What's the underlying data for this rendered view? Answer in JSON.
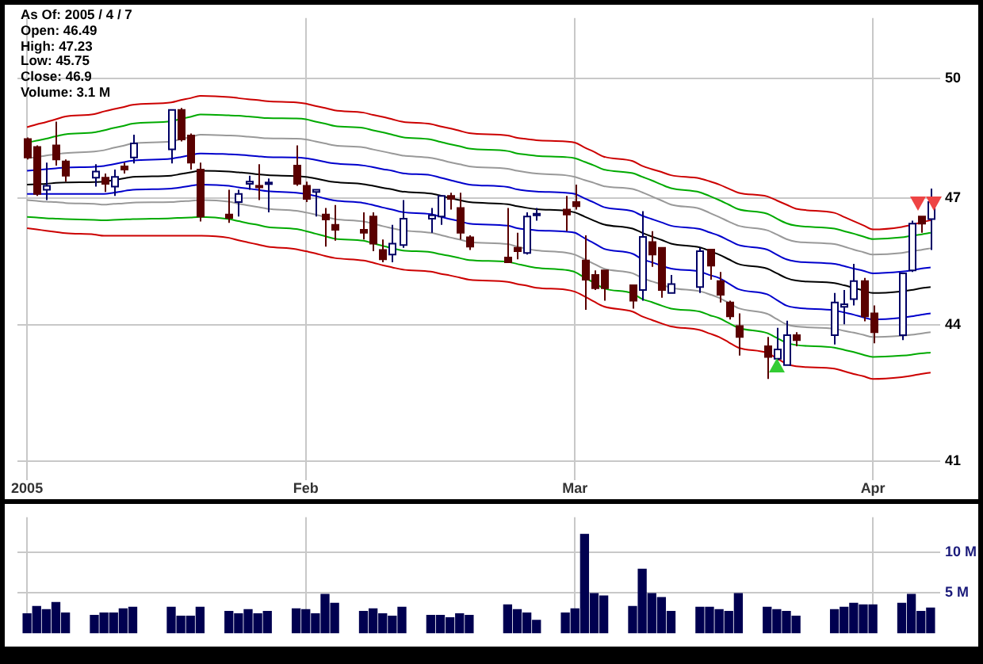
{
  "chart_data": [
    {
      "type": "candlestick",
      "log": true,
      "grid": true,
      "annotations": [
        "As Of: 2005 / 4 / 7",
        "Open: 46.49",
        "High: 47.23",
        "Low: 45.75",
        "Close: 46.9",
        "Volume: 3.1 M"
      ],
      "x": [
        "2005-01-03",
        "2005-01-04",
        "2005-01-05",
        "2005-01-06",
        "2005-01-07",
        "2005-01-10",
        "2005-01-11",
        "2005-01-12",
        "2005-01-13",
        "2005-01-14",
        "2005-01-18",
        "2005-01-19",
        "2005-01-20",
        "2005-01-21",
        "2005-01-24",
        "2005-01-25",
        "2005-01-26",
        "2005-01-27",
        "2005-01-28",
        "2005-01-31",
        "2005-02-01",
        "2005-02-02",
        "2005-02-03",
        "2005-02-04",
        "2005-02-07",
        "2005-02-08",
        "2005-02-09",
        "2005-02-10",
        "2005-02-11",
        "2005-02-14",
        "2005-02-15",
        "2005-02-16",
        "2005-02-17",
        "2005-02-18",
        "2005-02-22",
        "2005-02-23",
        "2005-02-24",
        "2005-02-25",
        "2005-02-28",
        "2005-03-01",
        "2005-03-02",
        "2005-03-03",
        "2005-03-04",
        "2005-03-07",
        "2005-03-08",
        "2005-03-09",
        "2005-03-10",
        "2005-03-11",
        "2005-03-14",
        "2005-03-15",
        "2005-03-16",
        "2005-03-17",
        "2005-03-18",
        "2005-03-21",
        "2005-03-22",
        "2005-03-23",
        "2005-03-24",
        "2005-03-28",
        "2005-03-29",
        "2005-03-30",
        "2005-03-31",
        "2005-04-01",
        "2005-04-04",
        "2005-04-05",
        "2005-04-06",
        "2005-04-07"
      ],
      "xlim": [
        "2005-01-02",
        "2005-04-08"
      ],
      "xticks": [
        {
          "value": "2005-01-03",
          "label": "2005"
        },
        {
          "value": "2005-02-01",
          "label": "Feb"
        },
        {
          "value": "2005-03-01",
          "label": "Mar"
        },
        {
          "value": "2005-04-01",
          "label": "Apr"
        }
      ],
      "ohlc": [
        [
          48.46,
          48.5,
          47.95,
          48.0
        ],
        [
          48.26,
          48.3,
          47.05,
          47.1
        ],
        [
          47.2,
          47.87,
          46.95,
          47.3
        ],
        [
          48.3,
          48.9,
          47.8,
          47.95
        ],
        [
          47.9,
          47.95,
          47.4,
          47.55
        ],
        [
          47.5,
          47.83,
          47.28,
          47.65
        ],
        [
          47.5,
          47.6,
          47.15,
          47.35
        ],
        [
          47.28,
          47.7,
          47.05,
          47.52
        ],
        [
          47.78,
          47.87,
          47.6,
          47.7
        ],
        [
          48.0,
          48.57,
          47.85,
          48.35
        ],
        [
          48.2,
          49.2,
          47.85,
          49.2
        ],
        [
          49.2,
          49.25,
          48.4,
          48.45
        ],
        [
          48.55,
          48.6,
          47.7,
          47.87
        ],
        [
          47.7,
          47.87,
          46.43,
          46.55
        ],
        [
          46.6,
          47.2,
          46.4,
          46.52
        ],
        [
          46.9,
          47.2,
          46.55,
          47.1
        ],
        [
          47.35,
          47.55,
          47.2,
          47.4
        ],
        [
          47.3,
          47.83,
          46.95,
          47.28
        ],
        [
          47.35,
          47.48,
          46.65,
          47.38
        ],
        [
          47.8,
          48.3,
          47.3,
          47.35
        ],
        [
          47.3,
          47.4,
          46.9,
          46.98
        ],
        [
          47.15,
          47.2,
          46.55,
          47.2
        ],
        [
          46.6,
          46.76,
          45.83,
          46.48
        ],
        [
          46.35,
          46.83,
          45.97,
          46.23
        ],
        [
          46.23,
          46.65,
          46.0,
          46.16
        ],
        [
          46.55,
          46.65,
          45.72,
          45.9
        ],
        [
          45.75,
          46.0,
          45.46,
          45.53
        ],
        [
          45.64,
          46.35,
          45.46,
          45.9
        ],
        [
          45.87,
          46.95,
          45.8,
          46.5
        ],
        [
          46.5,
          46.76,
          46.16,
          46.58
        ],
        [
          46.55,
          47.05,
          46.35,
          47.05
        ],
        [
          47.05,
          47.13,
          46.72,
          46.98
        ],
        [
          46.76,
          47.13,
          46.0,
          46.16
        ],
        [
          46.05,
          46.1,
          45.75,
          45.83
        ],
        [
          45.57,
          46.76,
          45.46,
          45.46
        ],
        [
          45.8,
          46.16,
          45.53,
          45.72
        ],
        [
          45.68,
          46.65,
          45.64,
          46.55
        ],
        [
          46.58,
          46.76,
          46.45,
          46.62
        ],
        [
          46.72,
          47.05,
          46.2,
          46.6
        ],
        [
          46.9,
          47.33,
          46.72,
          46.8
        ],
        [
          45.5,
          46.1,
          44.35,
          45.05
        ],
        [
          45.16,
          45.27,
          44.81,
          44.85
        ],
        [
          45.27,
          45.27,
          44.56,
          44.85
        ],
        [
          44.92,
          44.92,
          44.38,
          44.56
        ],
        [
          44.81,
          46.68,
          44.56,
          46.06
        ],
        [
          45.94,
          46.2,
          45.35,
          45.64
        ],
        [
          45.8,
          45.8,
          44.63,
          44.81
        ],
        [
          44.74,
          45.16,
          44.74,
          44.95
        ],
        [
          44.88,
          45.8,
          44.74,
          45.72
        ],
        [
          45.76,
          45.76,
          45.05,
          45.38
        ],
        [
          45.02,
          45.23,
          44.52,
          44.7
        ],
        [
          44.52,
          44.56,
          44.13,
          44.2
        ],
        [
          43.98,
          44.27,
          43.31,
          43.73
        ],
        [
          43.52,
          43.73,
          42.79,
          43.28
        ],
        [
          43.24,
          43.94,
          43.2,
          43.45
        ],
        [
          43.1,
          44.1,
          43.1,
          43.77
        ],
        [
          43.77,
          43.84,
          43.52,
          43.66
        ],
        [
          43.77,
          44.74,
          43.56,
          44.52
        ],
        [
          44.42,
          44.81,
          44.02,
          44.48
        ],
        [
          44.6,
          45.42,
          44.45,
          45.02
        ],
        [
          45.02,
          45.09,
          44.09,
          44.2
        ],
        [
          44.27,
          44.45,
          43.59,
          43.84
        ],
        [
          43.77,
          45.2,
          43.66,
          45.2
        ],
        [
          45.27,
          46.45,
          45.23,
          46.38
        ],
        [
          46.55,
          46.55,
          46.16,
          46.38
        ],
        [
          46.49,
          47.23,
          45.75,
          46.9
        ]
      ],
      "series": [
        {
          "type": "line",
          "color": "#cc0000",
          "values": [
            48.76,
            48.83,
            48.89,
            48.96,
            49.03,
            49.09,
            49.16,
            49.22,
            49.27,
            49.33,
            49.39,
            49.45,
            49.5,
            49.56,
            49.53,
            49.5,
            49.47,
            49.45,
            49.42,
            49.39,
            49.36,
            49.3,
            49.25,
            49.19,
            49.13,
            49.07,
            49.02,
            48.96,
            48.9,
            48.84,
            48.78,
            48.73,
            48.67,
            48.61,
            48.55,
            48.49,
            48.46,
            48.43,
            48.4,
            48.37,
            48.25,
            48.14,
            48.02,
            47.91,
            47.79,
            47.71,
            47.64,
            47.56,
            47.48,
            47.41,
            47.33,
            47.23,
            47.13,
            47.04,
            46.94,
            46.84,
            46.74,
            46.64,
            46.54,
            46.44,
            46.34,
            46.24,
            46.3,
            46.35,
            46.41,
            46.46
          ]
        },
        {
          "type": "line",
          "color": "#00aa00",
          "values": [
            48.37,
            48.42,
            48.47,
            48.53,
            48.58,
            48.63,
            48.68,
            48.74,
            48.79,
            48.85,
            48.91,
            48.97,
            49.02,
            49.08,
            49.06,
            49.05,
            49.03,
            49.01,
            48.99,
            48.98,
            48.96,
            48.9,
            48.85,
            48.79,
            48.74,
            48.68,
            48.63,
            48.57,
            48.51,
            48.45,
            48.39,
            48.33,
            48.28,
            48.22,
            48.16,
            48.1,
            48.07,
            48.04,
            48.01,
            47.98,
            47.89,
            47.8,
            47.7,
            47.61,
            47.52,
            47.43,
            47.33,
            47.24,
            47.14,
            47.05,
            46.95,
            46.84,
            46.73,
            46.62,
            46.5,
            46.39,
            46.33,
            46.26,
            46.2,
            46.14,
            46.07,
            46.01,
            46.05,
            46.09,
            46.12,
            46.16
          ]
        },
        {
          "type": "line",
          "color": "#999999",
          "values": [
            47.98,
            48.01,
            48.05,
            48.08,
            48.11,
            48.15,
            48.18,
            48.24,
            48.29,
            48.35,
            48.4,
            48.46,
            48.51,
            48.57,
            48.55,
            48.54,
            48.52,
            48.5,
            48.48,
            48.47,
            48.45,
            48.4,
            48.35,
            48.3,
            48.25,
            48.2,
            48.15,
            48.1,
            48.05,
            47.99,
            47.94,
            47.88,
            47.83,
            47.78,
            47.72,
            47.67,
            47.63,
            47.6,
            47.56,
            47.52,
            47.44,
            47.37,
            47.29,
            47.22,
            47.14,
            47.04,
            46.94,
            46.84,
            46.74,
            46.64,
            46.54,
            46.43,
            46.33,
            46.22,
            46.12,
            46.01,
            45.95,
            45.89,
            45.83,
            45.76,
            45.7,
            45.64,
            45.68,
            45.72,
            45.75,
            45.79
          ]
        },
        {
          "type": "line",
          "color": "#0000cc",
          "values": [
            47.67,
            47.69,
            47.71,
            47.73,
            47.75,
            47.77,
            47.79,
            47.83,
            47.88,
            47.92,
            47.97,
            48.01,
            48.06,
            48.1,
            48.08,
            48.07,
            48.05,
            48.03,
            48.01,
            48.0,
            47.98,
            47.94,
            47.89,
            47.85,
            47.8,
            47.76,
            47.71,
            47.67,
            47.61,
            47.56,
            47.5,
            47.44,
            47.38,
            47.33,
            47.27,
            47.21,
            47.18,
            47.16,
            47.13,
            47.1,
            46.99,
            46.89,
            46.78,
            46.68,
            46.57,
            46.49,
            46.41,
            46.33,
            46.25,
            46.17,
            46.09,
            45.98,
            45.87,
            45.76,
            45.64,
            45.53,
            45.48,
            45.42,
            45.37,
            45.31,
            45.26,
            45.2,
            45.24,
            45.27,
            45.31,
            45.34
          ]
        },
        {
          "type": "line",
          "color": "#000000",
          "values": [
            47.33,
            47.34,
            47.35,
            47.37,
            47.38,
            47.39,
            47.4,
            47.44,
            47.48,
            47.52,
            47.55,
            47.59,
            47.63,
            47.67,
            47.65,
            47.63,
            47.61,
            47.58,
            47.56,
            47.54,
            47.52,
            47.48,
            47.43,
            47.39,
            47.34,
            47.3,
            47.25,
            47.21,
            47.16,
            47.11,
            47.06,
            47.0,
            46.95,
            46.9,
            46.85,
            46.8,
            46.76,
            46.73,
            46.69,
            46.65,
            46.55,
            46.45,
            46.36,
            46.26,
            46.16,
            46.07,
            45.99,
            45.9,
            45.81,
            45.73,
            45.64,
            45.53,
            45.42,
            45.31,
            45.2,
            45.09,
            45.03,
            44.97,
            44.92,
            44.86,
            44.8,
            44.74,
            44.78,
            44.81,
            44.85,
            44.88
          ]
        },
        {
          "type": "line",
          "color": "#0000cc",
          "values": [
            47.1,
            47.1,
            47.1,
            47.1,
            47.1,
            47.1,
            47.1,
            47.13,
            47.17,
            47.2,
            47.23,
            47.26,
            47.3,
            47.33,
            47.3,
            47.26,
            47.23,
            47.2,
            47.17,
            47.13,
            47.1,
            47.05,
            46.99,
            46.94,
            46.88,
            46.83,
            46.77,
            46.72,
            46.66,
            46.61,
            46.55,
            46.49,
            46.44,
            46.38,
            46.33,
            46.27,
            46.24,
            46.22,
            46.19,
            46.16,
            46.03,
            45.91,
            45.78,
            45.66,
            45.53,
            45.46,
            45.38,
            45.31,
            45.24,
            45.16,
            45.09,
            44.96,
            44.83,
            44.71,
            44.58,
            44.45,
            44.4,
            44.34,
            44.29,
            44.24,
            44.18,
            44.13,
            44.17,
            44.2,
            44.24,
            44.27
          ]
        },
        {
          "type": "line",
          "color": "#999999",
          "values": [
            46.95,
            46.93,
            46.91,
            46.9,
            46.88,
            46.86,
            46.84,
            46.86,
            46.87,
            46.89,
            46.9,
            46.92,
            46.93,
            46.95,
            46.91,
            46.86,
            46.82,
            46.78,
            46.74,
            46.69,
            46.65,
            46.6,
            46.54,
            46.49,
            46.43,
            46.38,
            46.32,
            46.27,
            46.22,
            46.16,
            46.11,
            46.05,
            46.0,
            45.94,
            45.89,
            45.83,
            45.78,
            45.74,
            45.69,
            45.64,
            45.53,
            45.42,
            45.31,
            45.2,
            45.09,
            45.01,
            44.94,
            44.86,
            44.78,
            44.71,
            44.63,
            44.51,
            44.39,
            44.26,
            44.14,
            44.02,
            43.97,
            43.92,
            43.87,
            43.83,
            43.78,
            43.73,
            43.76,
            43.78,
            43.81,
            43.84
          ]
        },
        {
          "type": "line",
          "color": "#00aa00",
          "values": [
            46.54,
            46.53,
            46.51,
            46.5,
            46.49,
            46.47,
            46.46,
            46.47,
            46.48,
            46.49,
            46.51,
            46.52,
            46.53,
            46.54,
            46.49,
            46.44,
            46.39,
            46.35,
            46.3,
            46.25,
            46.2,
            46.14,
            46.08,
            46.02,
            45.97,
            45.91,
            45.85,
            45.79,
            45.74,
            45.7,
            45.65,
            45.61,
            45.56,
            45.51,
            45.47,
            45.42,
            45.37,
            45.33,
            45.28,
            45.23,
            45.1,
            44.98,
            44.85,
            44.73,
            44.6,
            44.53,
            44.45,
            44.38,
            44.31,
            44.23,
            44.16,
            44.05,
            43.94,
            43.82,
            43.71,
            43.6,
            43.55,
            43.49,
            43.44,
            43.39,
            43.33,
            43.28,
            43.31,
            43.33,
            43.36,
            43.38
          ]
        },
        {
          "type": "line",
          "color": "#cc0000",
          "values": [
            46.27,
            46.24,
            46.21,
            46.18,
            46.15,
            46.12,
            46.09,
            46.09,
            46.09,
            46.09,
            46.09,
            46.09,
            46.09,
            46.09,
            46.04,
            45.98,
            45.93,
            45.88,
            45.83,
            45.77,
            45.72,
            45.67,
            45.61,
            45.56,
            45.5,
            45.45,
            45.39,
            45.34,
            45.29,
            45.24,
            45.19,
            45.15,
            45.1,
            45.05,
            45.0,
            44.95,
            44.91,
            44.86,
            44.82,
            44.77,
            44.66,
            44.54,
            44.43,
            44.31,
            44.2,
            44.12,
            44.04,
            43.97,
            43.89,
            43.81,
            43.73,
            43.61,
            43.49,
            43.37,
            43.25,
            43.13,
            43.07,
            43.02,
            42.96,
            42.9,
            42.85,
            42.79,
            42.83,
            42.86,
            42.9,
            42.93
          ]
        }
      ],
      "ylim": [
        40.6,
        51.6
      ],
      "yticks": [
        41,
        44,
        47,
        50
      ]
    },
    {
      "type": "bar",
      "grid": true,
      "tick_labels": "y",
      "color": "#000050",
      "x": [
        "2005-01-03",
        "2005-01-04",
        "2005-01-05",
        "2005-01-06",
        "2005-01-07",
        "2005-01-10",
        "2005-01-11",
        "2005-01-12",
        "2005-01-13",
        "2005-01-14",
        "2005-01-18",
        "2005-01-19",
        "2005-01-20",
        "2005-01-21",
        "2005-01-24",
        "2005-01-25",
        "2005-01-26",
        "2005-01-27",
        "2005-01-28",
        "2005-01-31",
        "2005-02-01",
        "2005-02-02",
        "2005-02-03",
        "2005-02-04",
        "2005-02-07",
        "2005-02-08",
        "2005-02-09",
        "2005-02-10",
        "2005-02-11",
        "2005-02-14",
        "2005-02-15",
        "2005-02-16",
        "2005-02-17",
        "2005-02-18",
        "2005-02-22",
        "2005-02-23",
        "2005-02-24",
        "2005-02-25",
        "2005-02-28",
        "2005-03-01",
        "2005-03-02",
        "2005-03-03",
        "2005-03-04",
        "2005-03-07",
        "2005-03-08",
        "2005-03-09",
        "2005-03-10",
        "2005-03-11",
        "2005-03-14",
        "2005-03-15",
        "2005-03-16",
        "2005-03-17",
        "2005-03-18",
        "2005-03-21",
        "2005-03-22",
        "2005-03-23",
        "2005-03-24",
        "2005-03-28",
        "2005-03-29",
        "2005-03-30",
        "2005-03-31",
        "2005-04-01",
        "2005-04-04",
        "2005-04-05",
        "2005-04-06",
        "2005-04-07"
      ],
      "xlim": [
        "2005-01-02",
        "2005-04-08"
      ],
      "xticks": [
        {
          "value": "2005-01-03",
          "label": null
        },
        {
          "value": "2005-02-01",
          "label": null
        },
        {
          "value": "2005-03-01",
          "label": null
        },
        {
          "value": "2005-04-01",
          "label": null
        }
      ],
      "values": [
        2.4,
        3.3,
        2.9,
        3.8,
        2.5,
        2.2,
        2.5,
        2.5,
        3.0,
        3.2,
        3.2,
        2.1,
        2.1,
        3.2,
        2.7,
        2.4,
        2.9,
        2.4,
        2.7,
        3.0,
        2.9,
        2.4,
        4.8,
        3.7,
        2.7,
        3.0,
        2.4,
        2.1,
        3.2,
        2.2,
        2.2,
        1.9,
        2.4,
        2.2,
        3.5,
        2.9,
        2.5,
        1.6,
        2.5,
        3.0,
        12.2,
        4.9,
        4.6,
        3.3,
        7.9,
        4.9,
        4.4,
        2.7,
        3.2,
        3.2,
        2.9,
        2.7,
        4.9,
        3.2,
        2.9,
        2.7,
        2.1,
        2.9,
        3.2,
        3.7,
        3.5,
        3.5,
        3.7,
        4.8,
        2.7,
        3.1
      ],
      "ylim": [
        0,
        14.3
      ],
      "yticks": [
        {
          "value": 5,
          "label": "5 M"
        },
        {
          "value": 10,
          "label": "10 M"
        }
      ]
    }
  ]
}
